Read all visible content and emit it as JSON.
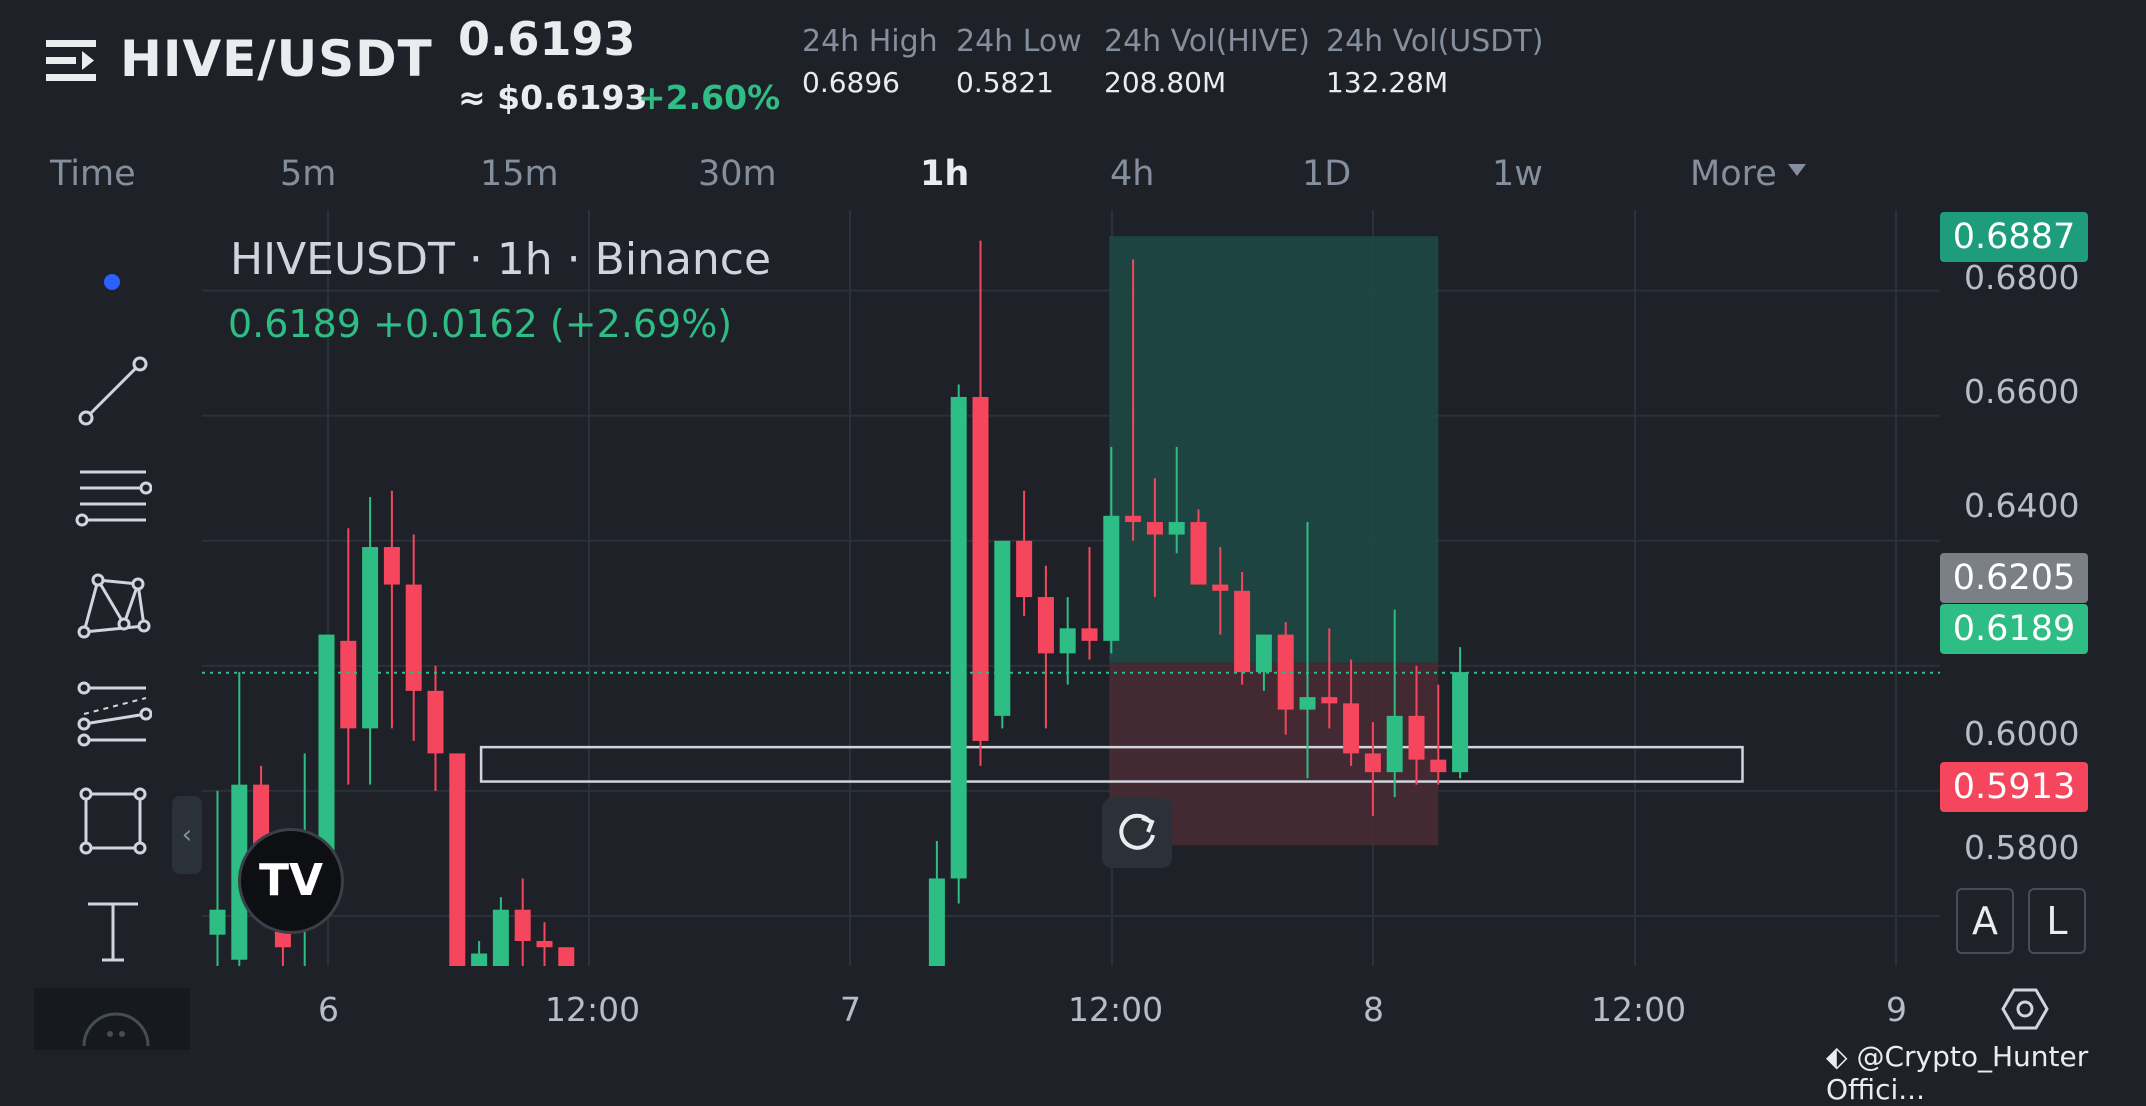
{
  "header": {
    "pair": "HIVE/USDT",
    "price": "0.6193",
    "fiat_price": "≈ $0.6193",
    "change_pct": "+2.60%",
    "stats": [
      {
        "label": "24h High",
        "value": "0.6896"
      },
      {
        "label": "24h Low",
        "value": "0.5821"
      },
      {
        "label": "24h Vol(HIVE)",
        "value": "208.80M"
      },
      {
        "label": "24h Vol(USDT)",
        "value": "132.28M"
      }
    ]
  },
  "timeframes": {
    "items": [
      "Time",
      "5m",
      "15m",
      "30m",
      "1h",
      "4h",
      "1D",
      "1w",
      "More"
    ],
    "active": "1h"
  },
  "legend": {
    "title": "HIVEUSDT · 1h · Binance",
    "values": "0.6189  +0.0162 (+2.69%)"
  },
  "price_tags": {
    "target": "0.6887",
    "entry": "0.6205",
    "last": "0.6189",
    "stop": "0.5913"
  },
  "buttons": {
    "a_label": "A",
    "l_label": "L",
    "collapse": "‹",
    "tv_logo": "TV"
  },
  "watermark": "@Crypto_Hunter Offici...",
  "colors": {
    "up": "#2ebd85",
    "down": "#f6465d",
    "profit_zone": "#1d4a44",
    "loss_zone": "#4a2a33"
  },
  "icons": [
    "menu-icon",
    "trend-line-icon",
    "horizontal-lines-icon",
    "pattern-icon",
    "forecast-lines-icon",
    "rectangle-icon",
    "text-icon",
    "refresh-icon",
    "settings-hexagon-icon"
  ],
  "chart_data": {
    "type": "candlestick",
    "xlabels": [
      "6",
      "12:00",
      "7",
      "12:00",
      "8",
      "12:00",
      "9"
    ],
    "ytick_labels": [
      "0.6800",
      "0.6600",
      "0.6400",
      "0.6000",
      "0.5800"
    ],
    "ylim": [
      0.572,
      0.6929
    ],
    "x_start_index": -11,
    "x_per_day_hours": 24,
    "candles": [
      {
        "o": 0.577,
        "h": 0.6,
        "l": 0.572,
        "c": 0.581
      },
      {
        "o": 0.573,
        "h": 0.619,
        "l": 0.57,
        "c": 0.601
      },
      {
        "o": 0.601,
        "h": 0.604,
        "l": 0.585,
        "c": 0.586
      },
      {
        "o": 0.586,
        "h": 0.588,
        "l": 0.57,
        "c": 0.575
      },
      {
        "o": 0.579,
        "h": 0.606,
        "l": 0.57,
        "c": 0.589
      },
      {
        "o": 0.589,
        "h": 0.625,
        "l": 0.585,
        "c": 0.625
      },
      {
        "o": 0.624,
        "h": 0.642,
        "l": 0.601,
        "c": 0.61
      },
      {
        "o": 0.61,
        "h": 0.647,
        "l": 0.601,
        "c": 0.639
      },
      {
        "o": 0.639,
        "h": 0.648,
        "l": 0.61,
        "c": 0.633
      },
      {
        "o": 0.633,
        "h": 0.641,
        "l": 0.608,
        "c": 0.616
      },
      {
        "o": 0.616,
        "h": 0.62,
        "l": 0.6,
        "c": 0.606
      },
      {
        "o": 0.606,
        "h": 0.606,
        "l": 0.57,
        "c": 0.57
      },
      {
        "o": 0.572,
        "h": 0.576,
        "l": 0.57,
        "c": 0.574
      },
      {
        "o": 0.572,
        "h": 0.583,
        "l": 0.572,
        "c": 0.581
      },
      {
        "o": 0.581,
        "h": 0.586,
        "l": 0.572,
        "c": 0.576
      },
      {
        "o": 0.576,
        "h": 0.579,
        "l": 0.572,
        "c": 0.575
      },
      {
        "o": 0.575,
        "h": 0.575,
        "l": 0.57,
        "c": 0.572
      },
      {
        "o": 0.572,
        "h": 0.592,
        "l": 0.57,
        "c": 0.586
      },
      {
        "o": 0.586,
        "h": 0.665,
        "l": 0.582,
        "c": 0.663
      },
      {
        "o": 0.663,
        "h": 0.688,
        "l": 0.604,
        "c": 0.608
      },
      {
        "o": 0.612,
        "h": 0.64,
        "l": 0.61,
        "c": 0.64
      },
      {
        "o": 0.64,
        "h": 0.648,
        "l": 0.628,
        "c": 0.631
      },
      {
        "o": 0.631,
        "h": 0.636,
        "l": 0.61,
        "c": 0.622
      },
      {
        "o": 0.622,
        "h": 0.631,
        "l": 0.617,
        "c": 0.626
      },
      {
        "o": 0.626,
        "h": 0.639,
        "l": 0.621,
        "c": 0.624
      },
      {
        "o": 0.624,
        "h": 0.655,
        "l": 0.622,
        "c": 0.644
      },
      {
        "o": 0.644,
        "h": 0.685,
        "l": 0.64,
        "c": 0.643
      },
      {
        "o": 0.643,
        "h": 0.65,
        "l": 0.631,
        "c": 0.641
      },
      {
        "o": 0.641,
        "h": 0.655,
        "l": 0.638,
        "c": 0.643
      },
      {
        "o": 0.643,
        "h": 0.645,
        "l": 0.633,
        "c": 0.633
      },
      {
        "o": 0.633,
        "h": 0.639,
        "l": 0.625,
        "c": 0.632
      },
      {
        "o": 0.632,
        "h": 0.635,
        "l": 0.617,
        "c": 0.619
      },
      {
        "o": 0.619,
        "h": 0.625,
        "l": 0.616,
        "c": 0.625
      },
      {
        "o": 0.625,
        "h": 0.627,
        "l": 0.609,
        "c": 0.613
      },
      {
        "o": 0.613,
        "h": 0.643,
        "l": 0.602,
        "c": 0.615
      },
      {
        "o": 0.615,
        "h": 0.626,
        "l": 0.61,
        "c": 0.614
      },
      {
        "o": 0.614,
        "h": 0.621,
        "l": 0.604,
        "c": 0.606
      },
      {
        "o": 0.606,
        "h": 0.611,
        "l": 0.596,
        "c": 0.603
      },
      {
        "o": 0.603,
        "h": 0.629,
        "l": 0.599,
        "c": 0.612
      },
      {
        "o": 0.612,
        "h": 0.62,
        "l": 0.601,
        "c": 0.605
      },
      {
        "o": 0.605,
        "h": 0.617,
        "l": 0.601,
        "c": 0.603
      },
      {
        "o": 0.603,
        "h": 0.623,
        "l": 0.602,
        "c": 0.619
      }
    ],
    "support_zone": {
      "from_index": 12,
      "to_index": 70,
      "y_top": 0.607,
      "y_bottom": 0.6015
    },
    "long_position": {
      "from_index": 41,
      "to_index": 56,
      "target": 0.6887,
      "entry": 0.6205,
      "stop": 0.5913
    },
    "last_price_line": 0.6189,
    "grid": true
  }
}
